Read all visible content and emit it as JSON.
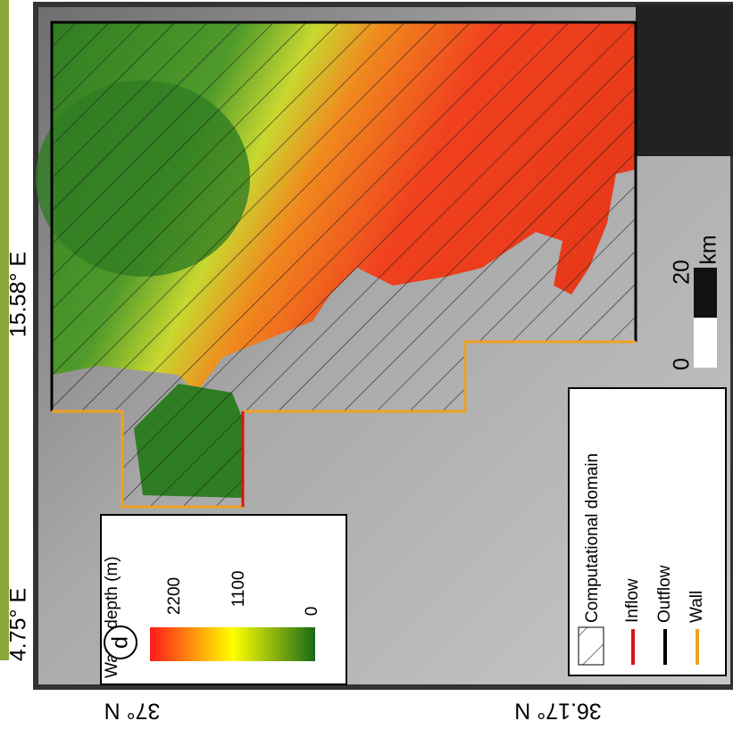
{
  "panel_label": "d",
  "axes": {
    "left": [
      "15.58° E",
      "4.75° E"
    ],
    "bottom": [
      "37° N",
      "36.17° N"
    ]
  },
  "depth_legend": {
    "title": "Water depth (m)",
    "ticks": [
      2200,
      1100,
      0
    ]
  },
  "domain_legend": {
    "items": [
      "Computational domain",
      "Inflow",
      "Outflow",
      "Wall"
    ]
  },
  "scale_bar": {
    "ticks": [
      0,
      20
    ],
    "unit": "km"
  }
}
